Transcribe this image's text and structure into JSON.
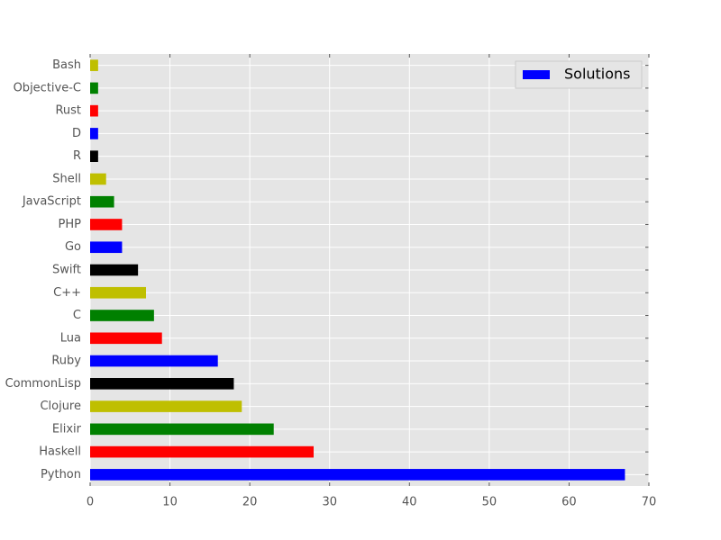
{
  "chart_data": {
    "type": "barh",
    "categories": [
      "Python",
      "Haskell",
      "Elixir",
      "Clojure",
      "CommonLisp",
      "Ruby",
      "Lua",
      "C",
      "C++",
      "Swift",
      "Go",
      "PHP",
      "JavaScript",
      "Shell",
      "R",
      "D",
      "Rust",
      "Objective-C",
      "Bash"
    ],
    "series": [
      {
        "name": "Solutions",
        "color": "#0000ff",
        "values": [
          67,
          28,
          23,
          19,
          18,
          16,
          9,
          8,
          7,
          6,
          4,
          4,
          3,
          2,
          1,
          1,
          1,
          1,
          1
        ]
      }
    ],
    "colors": [
      "#0000ff",
      "#ff0000",
      "#008000",
      "#bfbf00",
      "#000000",
      "#0000ff",
      "#ff0000",
      "#008000",
      "#bfbf00",
      "#000000",
      "#0000ff",
      "#ff0000",
      "#008000",
      "#bfbf00",
      "#000000",
      "#0000ff",
      "#ff0000",
      "#008000",
      "#bfbf00"
    ],
    "xlim": [
      0,
      70
    ],
    "xticks": [
      0,
      10,
      20,
      30,
      40,
      50,
      60,
      70
    ],
    "grid": true,
    "legend": "upper right"
  }
}
